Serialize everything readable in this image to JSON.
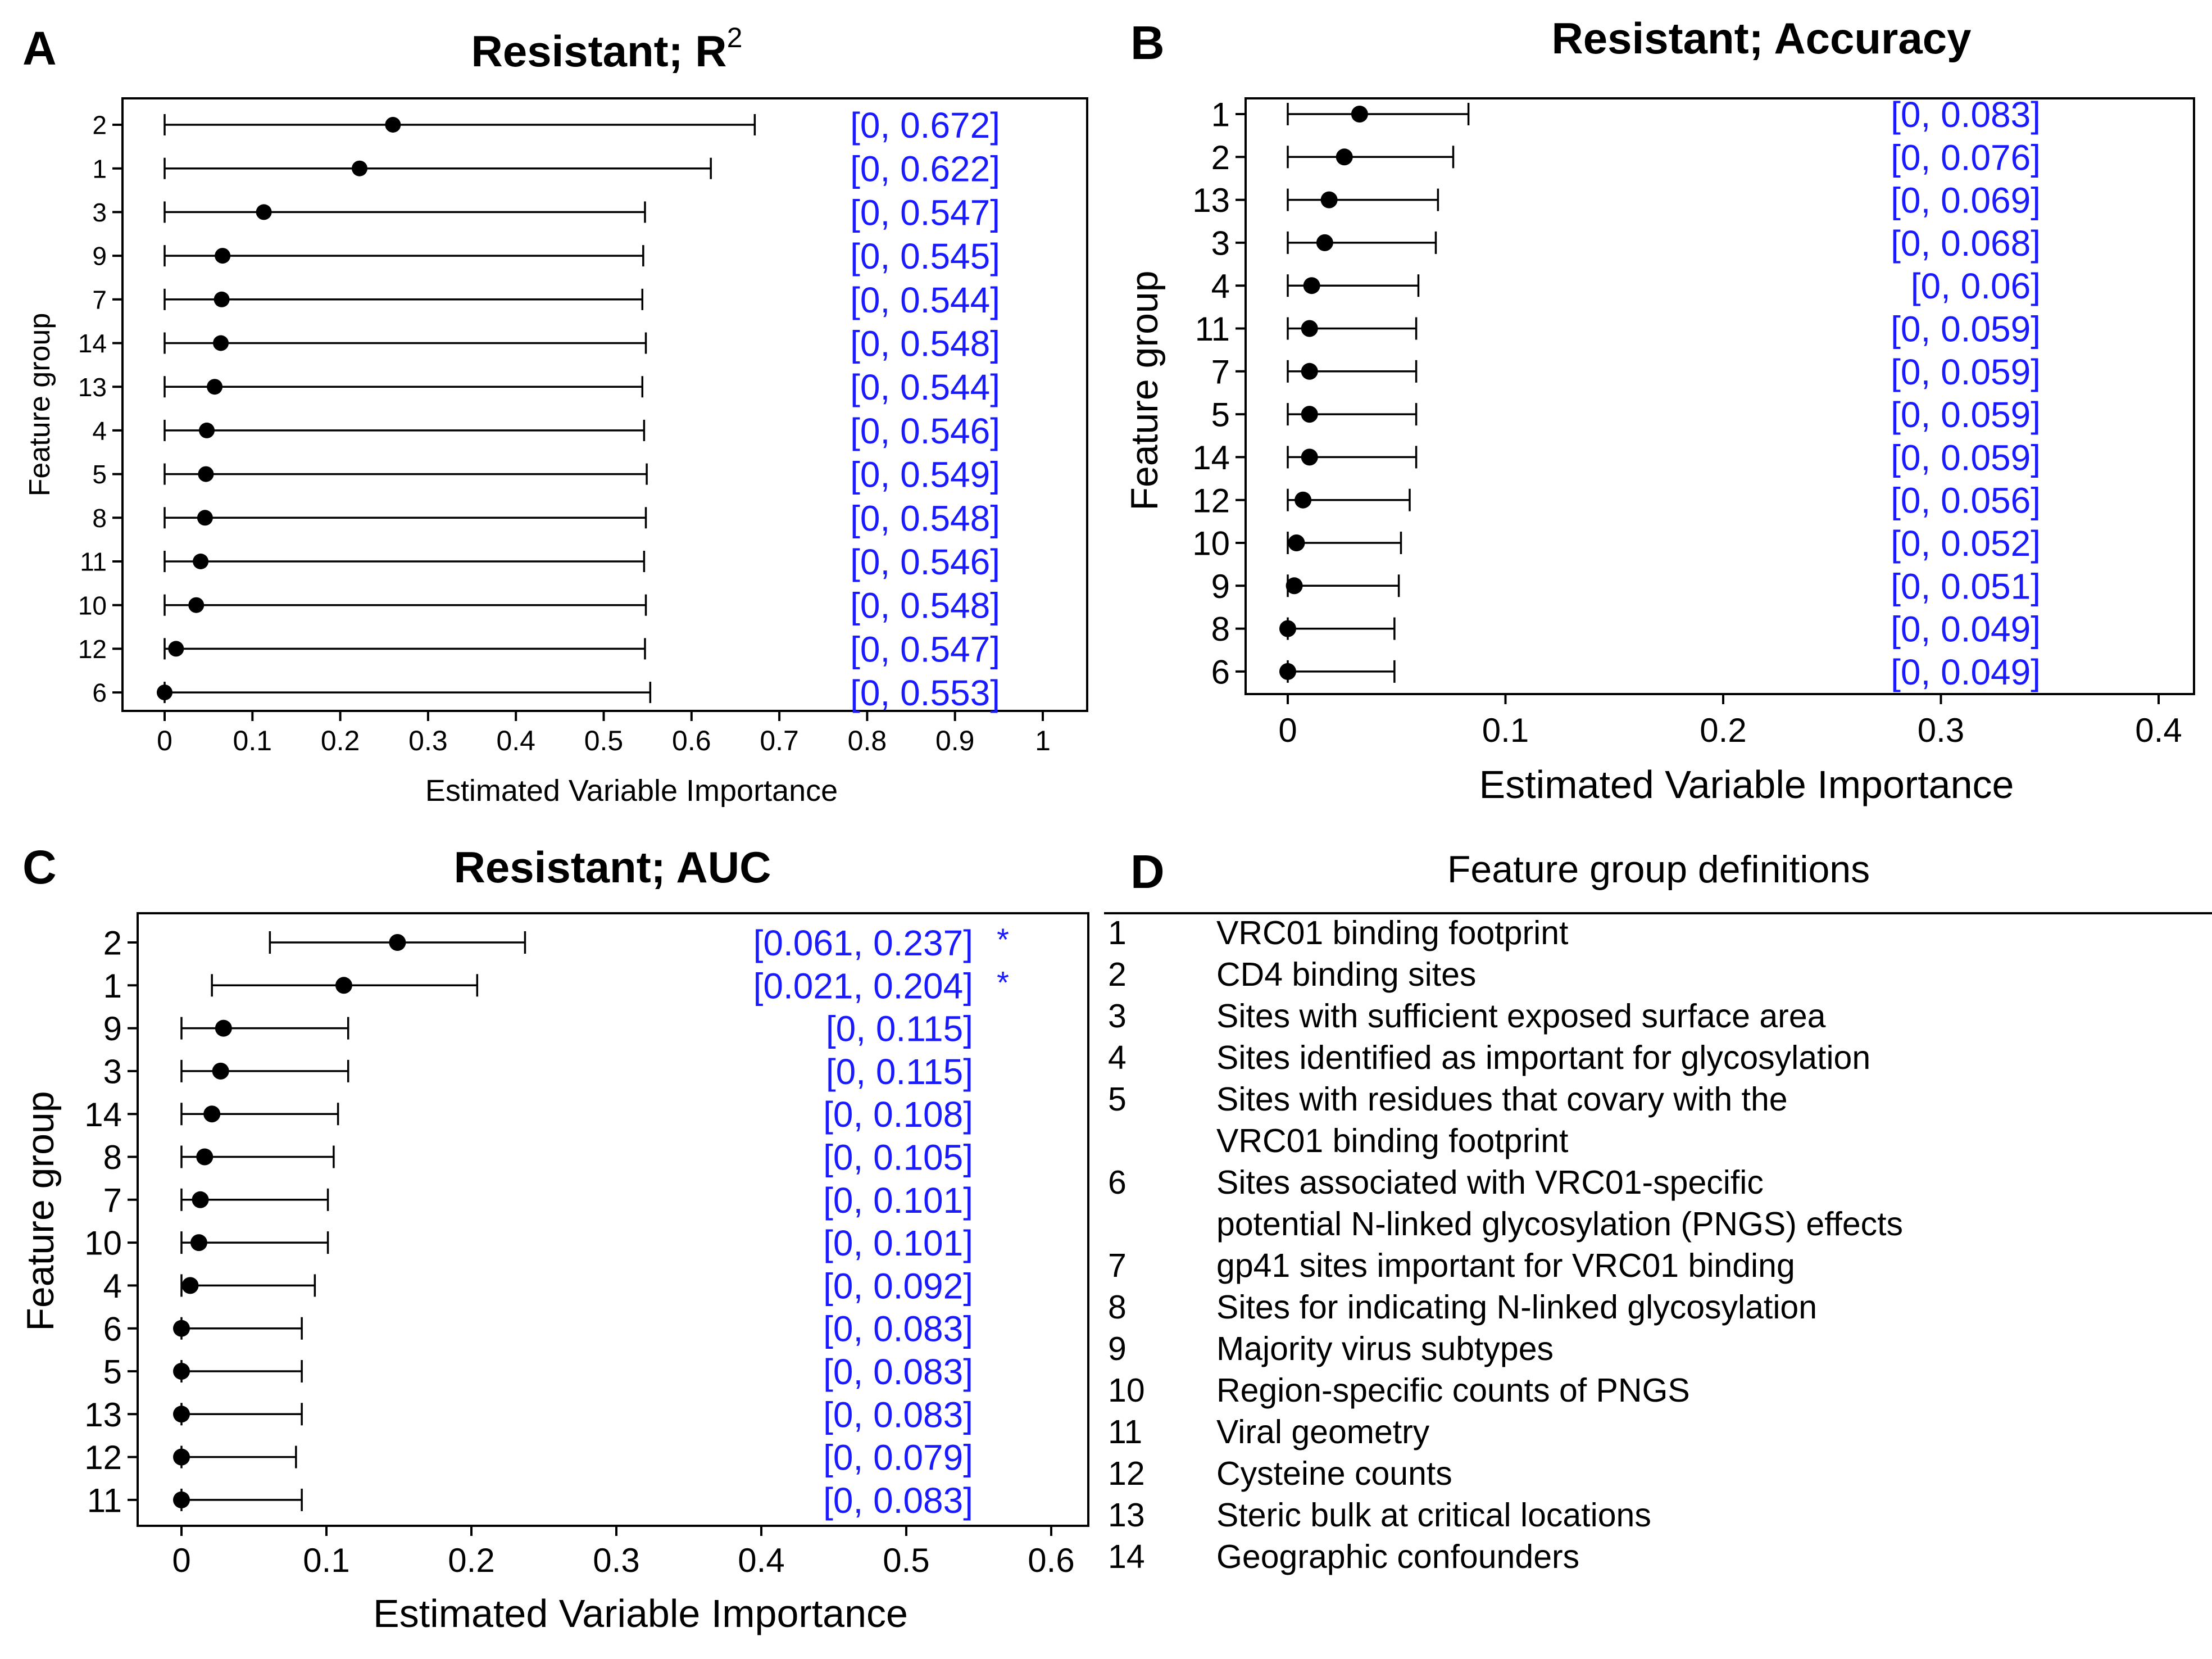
{
  "chart_data": [
    {
      "id": "A",
      "panel_label": "A",
      "type": "scatter",
      "title": "Resistant;  R",
      "title_superscript": "2",
      "xlabel": "Estimated Variable Importance",
      "ylabel": "Feature group",
      "xlim": [
        -0.02,
        1.05
      ],
      "xticks": [
        0,
        0.1,
        0.2,
        0.3,
        0.4,
        0.5,
        0.6,
        0.7,
        0.8,
        0.9,
        1
      ],
      "xtick_labels": [
        "0",
        "0.1",
        "0.2",
        "0.3",
        "0.4",
        "0.5",
        "0.6",
        "0.7",
        "0.8",
        "0.9",
        "1"
      ],
      "grid": false,
      "points": [
        {
          "group": "2",
          "estimate": 0.26,
          "low": 0,
          "high": 0.672,
          "ci": "[0, 0.672]"
        },
        {
          "group": "1",
          "estimate": 0.222,
          "low": 0,
          "high": 0.622,
          "ci": "[0, 0.622]"
        },
        {
          "group": "3",
          "estimate": 0.113,
          "low": 0,
          "high": 0.547,
          "ci": "[0, 0.547]"
        },
        {
          "group": "9",
          "estimate": 0.066,
          "low": 0,
          "high": 0.545,
          "ci": "[0, 0.545]"
        },
        {
          "group": "7",
          "estimate": 0.065,
          "low": 0,
          "high": 0.544,
          "ci": "[0, 0.544]"
        },
        {
          "group": "14",
          "estimate": 0.064,
          "low": 0,
          "high": 0.548,
          "ci": "[0, 0.548]"
        },
        {
          "group": "13",
          "estimate": 0.057,
          "low": 0,
          "high": 0.544,
          "ci": "[0, 0.544]"
        },
        {
          "group": "4",
          "estimate": 0.048,
          "low": 0,
          "high": 0.546,
          "ci": "[0, 0.546]"
        },
        {
          "group": "5",
          "estimate": 0.047,
          "low": 0,
          "high": 0.549,
          "ci": "[0, 0.549]"
        },
        {
          "group": "8",
          "estimate": 0.046,
          "low": 0,
          "high": 0.548,
          "ci": "[0, 0.548]"
        },
        {
          "group": "11",
          "estimate": 0.041,
          "low": 0,
          "high": 0.546,
          "ci": "[0, 0.546]"
        },
        {
          "group": "10",
          "estimate": 0.036,
          "low": 0,
          "high": 0.548,
          "ci": "[0, 0.548]"
        },
        {
          "group": "12",
          "estimate": 0.013,
          "low": 0,
          "high": 0.547,
          "ci": "[0, 0.547]"
        },
        {
          "group": "6",
          "estimate": 0.0,
          "low": 0,
          "high": 0.553,
          "ci": "[0, 0.553]"
        }
      ],
      "colors": {
        "ci_text": "#1a1aff",
        "points": "#000000"
      }
    },
    {
      "id": "B",
      "panel_label": "B",
      "type": "scatter",
      "title": "Resistant;  Accuracy",
      "xlabel": "Estimated Variable Importance",
      "ylabel": "Feature group",
      "xlim": [
        -0.02,
        0.41
      ],
      "xticks": [
        0,
        0.1,
        0.2,
        0.3,
        0.4
      ],
      "xtick_labels": [
        "0",
        "0.1",
        "0.2",
        "0.3",
        "0.4"
      ],
      "grid": false,
      "points": [
        {
          "group": "1",
          "estimate": 0.033,
          "low": 0,
          "high": 0.083,
          "ci": "[0, 0.083]"
        },
        {
          "group": "2",
          "estimate": 0.026,
          "low": 0,
          "high": 0.076,
          "ci": "[0, 0.076]"
        },
        {
          "group": "13",
          "estimate": 0.019,
          "low": 0,
          "high": 0.069,
          "ci": "[0, 0.069]"
        },
        {
          "group": "3",
          "estimate": 0.017,
          "low": 0,
          "high": 0.068,
          "ci": "[0, 0.068]"
        },
        {
          "group": "4",
          "estimate": 0.011,
          "low": 0,
          "high": 0.06,
          "ci": "[0, 0.06]"
        },
        {
          "group": "11",
          "estimate": 0.01,
          "low": 0,
          "high": 0.059,
          "ci": "[0, 0.059]"
        },
        {
          "group": "7",
          "estimate": 0.01,
          "low": 0,
          "high": 0.059,
          "ci": "[0, 0.059]"
        },
        {
          "group": "5",
          "estimate": 0.01,
          "low": 0,
          "high": 0.059,
          "ci": "[0, 0.059]"
        },
        {
          "group": "14",
          "estimate": 0.01,
          "low": 0,
          "high": 0.059,
          "ci": "[0, 0.059]"
        },
        {
          "group": "12",
          "estimate": 0.007,
          "low": 0,
          "high": 0.056,
          "ci": "[0, 0.056]"
        },
        {
          "group": "10",
          "estimate": 0.004,
          "low": 0,
          "high": 0.052,
          "ci": "[0, 0.052]"
        },
        {
          "group": "9",
          "estimate": 0.003,
          "low": 0,
          "high": 0.051,
          "ci": "[0, 0.051]"
        },
        {
          "group": "8",
          "estimate": 0.0,
          "low": 0,
          "high": 0.049,
          "ci": "[0, 0.049]"
        },
        {
          "group": "6",
          "estimate": 0.0,
          "low": 0,
          "high": 0.049,
          "ci": "[0, 0.049]"
        }
      ],
      "colors": {
        "ci_text": "#1a1aff",
        "points": "#000000"
      }
    },
    {
      "id": "C",
      "panel_label": "C",
      "type": "scatter",
      "title": "Resistant;  AUC",
      "xlabel": "Estimated Variable Importance",
      "ylabel": "Feature group",
      "xlim": [
        -0.02,
        0.62
      ],
      "xticks": [
        0,
        0.1,
        0.2,
        0.3,
        0.4,
        0.5,
        0.6
      ],
      "xtick_labels": [
        "0",
        "0.1",
        "0.2",
        "0.3",
        "0.4",
        "0.5",
        "0.6"
      ],
      "grid": false,
      "points": [
        {
          "group": "2",
          "estimate": 0.149,
          "low": 0.061,
          "high": 0.237,
          "ci": "[0.061, 0.237]",
          "star": "*"
        },
        {
          "group": "1",
          "estimate": 0.112,
          "low": 0.021,
          "high": 0.204,
          "ci": "[0.021, 0.204]",
          "star": "*"
        },
        {
          "group": "9",
          "estimate": 0.029,
          "low": 0,
          "high": 0.115,
          "ci": "[0, 0.115]"
        },
        {
          "group": "3",
          "estimate": 0.027,
          "low": 0,
          "high": 0.115,
          "ci": "[0, 0.115]"
        },
        {
          "group": "14",
          "estimate": 0.021,
          "low": 0,
          "high": 0.108,
          "ci": "[0, 0.108]"
        },
        {
          "group": "8",
          "estimate": 0.016,
          "low": 0,
          "high": 0.105,
          "ci": "[0, 0.105]"
        },
        {
          "group": "7",
          "estimate": 0.013,
          "low": 0,
          "high": 0.101,
          "ci": "[0, 0.101]"
        },
        {
          "group": "10",
          "estimate": 0.012,
          "low": 0,
          "high": 0.101,
          "ci": "[0, 0.101]"
        },
        {
          "group": "4",
          "estimate": 0.006,
          "low": 0,
          "high": 0.092,
          "ci": "[0, 0.092]"
        },
        {
          "group": "6",
          "estimate": 0.0,
          "low": 0,
          "high": 0.083,
          "ci": "[0, 0.083]"
        },
        {
          "group": "5",
          "estimate": 0.0,
          "low": 0,
          "high": 0.083,
          "ci": "[0, 0.083]"
        },
        {
          "group": "13",
          "estimate": 0.0,
          "low": 0,
          "high": 0.083,
          "ci": "[0, 0.083]"
        },
        {
          "group": "12",
          "estimate": 0.0,
          "low": 0,
          "high": 0.079,
          "ci": "[0, 0.079]"
        },
        {
          "group": "11",
          "estimate": 0.0,
          "low": 0,
          "high": 0.083,
          "ci": "[0, 0.083]"
        }
      ],
      "colors": {
        "ci_text": "#1a1aff",
        "points": "#000000"
      }
    },
    {
      "id": "D",
      "panel_label": "D",
      "type": "table",
      "title": "Feature group definitions",
      "rows": [
        {
          "num": "1",
          "lines": [
            "VRC01 binding footprint"
          ]
        },
        {
          "num": "2",
          "lines": [
            "CD4 binding sites"
          ]
        },
        {
          "num": "3",
          "lines": [
            "Sites with sufficient exposed surface area"
          ]
        },
        {
          "num": "4",
          "lines": [
            "Sites identified as important for glycosylation"
          ]
        },
        {
          "num": "5",
          "lines": [
            "Sites with residues that covary with the",
            "VRC01 binding footprint"
          ]
        },
        {
          "num": "6",
          "lines": [
            "Sites associated with VRC01-specific",
            "potential N-linked glycosylation (PNGS) effects"
          ]
        },
        {
          "num": "7",
          "lines": [
            "gp41 sites important for VRC01 binding"
          ]
        },
        {
          "num": "8",
          "lines": [
            "Sites for indicating N-linked glycosylation"
          ]
        },
        {
          "num": "9",
          "lines": [
            "Majority virus subtypes"
          ]
        },
        {
          "num": "10",
          "lines": [
            "Region-specific counts of PNGS"
          ]
        },
        {
          "num": "11",
          "lines": [
            "Viral geometry"
          ]
        },
        {
          "num": "12",
          "lines": [
            "Cysteine counts"
          ]
        },
        {
          "num": "13",
          "lines": [
            "Steric bulk at critical locations"
          ]
        },
        {
          "num": "14",
          "lines": [
            "Geographic confounders"
          ]
        }
      ]
    }
  ]
}
